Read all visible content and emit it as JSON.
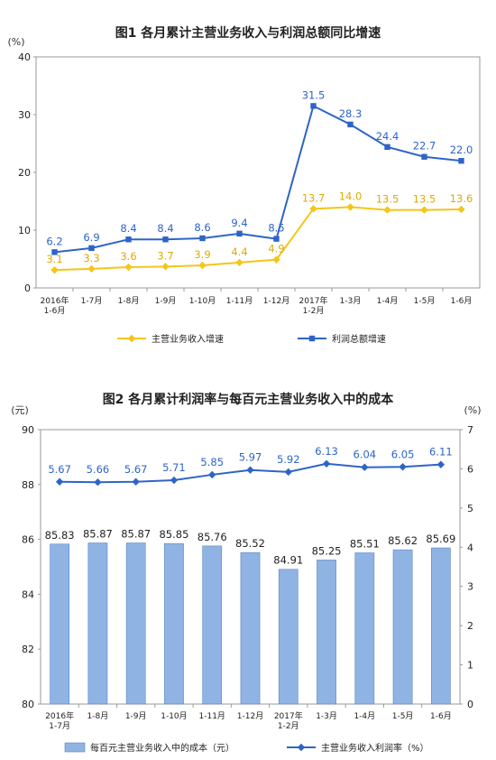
{
  "chart_data": [
    {
      "type": "line",
      "title": "图1  各月累计主营业务收入与利润总额同比增速",
      "y_unit": "(%)",
      "ylim": [
        0,
        40
      ],
      "yticks": [
        "0",
        "10",
        "20",
        "30",
        "40"
      ],
      "categories": [
        [
          "2016年",
          "1-6月"
        ],
        [
          "1-7月"
        ],
        [
          "1-8月"
        ],
        [
          "1-9月"
        ],
        [
          "1-10月"
        ],
        [
          "1-11月"
        ],
        [
          "1-12月"
        ],
        [
          "2017年",
          "1-2月"
        ],
        [
          "1-3月"
        ],
        [
          "1-4月"
        ],
        [
          "1-5月"
        ],
        [
          "1-6月"
        ]
      ],
      "series": [
        {
          "name": "主营业务收入增速",
          "color": "#f5c518",
          "marker": "diamond",
          "values": [
            3.1,
            3.3,
            3.6,
            3.7,
            3.9,
            4.4,
            4.9,
            13.7,
            14.0,
            13.5,
            13.5,
            13.6
          ],
          "labels": [
            "3.1",
            "3.3",
            "3.6",
            "3.7",
            "3.9",
            "4.4",
            "4.9",
            "13.7",
            "14.0",
            "13.5",
            "13.5",
            "13.6"
          ]
        },
        {
          "name": "利润总额增速",
          "color": "#2e64c8",
          "marker": "square",
          "values": [
            6.2,
            6.9,
            8.4,
            8.4,
            8.6,
            9.4,
            8.5,
            31.5,
            28.3,
            24.4,
            22.7,
            22.0
          ],
          "labels": [
            "6.2",
            "6.9",
            "8.4",
            "8.4",
            "8.6",
            "9.4",
            "8.5",
            "31.5",
            "28.3",
            "24.4",
            "22.7",
            "22.0"
          ]
        }
      ],
      "legend": "bottom"
    },
    {
      "type": "bar",
      "title": "图2  各月累计利润率与每百元主营业务收入中的成本",
      "y_unit_left": "(元)",
      "y_unit_right": "(%)",
      "ylim_left": [
        80,
        90
      ],
      "ylim_right": [
        0,
        7
      ],
      "yticks_left": [
        "80",
        "82",
        "84",
        "86",
        "88",
        "90"
      ],
      "yticks_right": [
        "0",
        "1",
        "2",
        "3",
        "4",
        "5",
        "6",
        "7"
      ],
      "categories": [
        [
          "2016年",
          "1-7月"
        ],
        [
          "1-8月"
        ],
        [
          "1-9月"
        ],
        [
          "1-10月"
        ],
        [
          "1-11月"
        ],
        [
          "1-12月"
        ],
        [
          "2017年",
          "1-2月"
        ],
        [
          "1-3月"
        ],
        [
          "1-4月"
        ],
        [
          "1-5月"
        ],
        [
          "1-6月"
        ]
      ],
      "series": [
        {
          "name": "每百元主营业务收入中的成本（元）",
          "kind": "bar",
          "axis": "left",
          "color": "#8fb4e3",
          "values": [
            85.83,
            85.87,
            85.87,
            85.85,
            85.76,
            85.52,
            84.91,
            85.25,
            85.51,
            85.62,
            85.69
          ],
          "labels": [
            "85.83",
            "85.87",
            "85.87",
            "85.85",
            "85.76",
            "85.52",
            "84.91",
            "85.25",
            "85.51",
            "85.62",
            "85.69"
          ]
        },
        {
          "name": "主营业务收入利润率（%）",
          "kind": "line",
          "axis": "right",
          "color": "#2e64c8",
          "marker": "diamond",
          "values": [
            5.67,
            5.66,
            5.67,
            5.71,
            5.85,
            5.97,
            5.92,
            6.13,
            6.04,
            6.05,
            6.11
          ],
          "labels": [
            "5.67",
            "5.66",
            "5.67",
            "5.71",
            "5.85",
            "5.97",
            "5.92",
            "6.13",
            "6.04",
            "6.05",
            "6.11"
          ]
        }
      ],
      "legend": "bottom"
    }
  ]
}
